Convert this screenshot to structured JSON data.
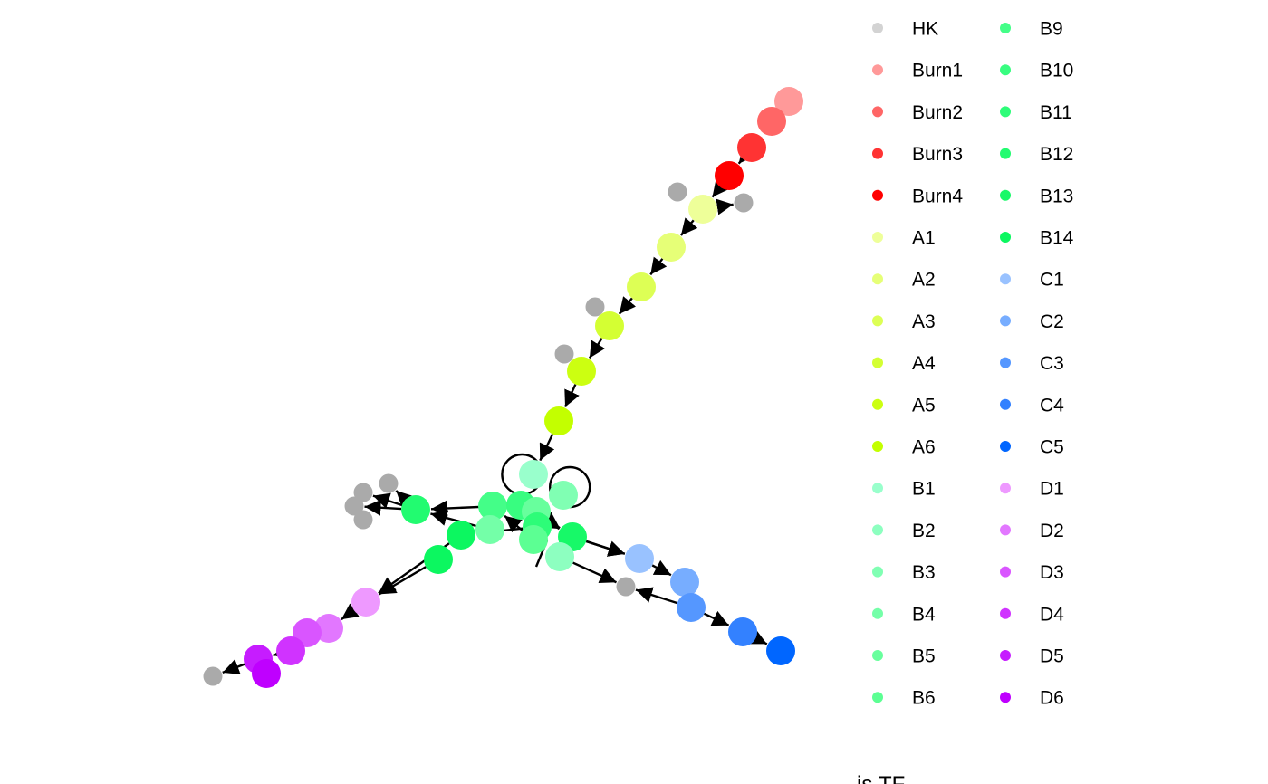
{
  "legend": {
    "items": [
      {
        "label": "HK",
        "color": "#d3d3d3"
      },
      {
        "label": "Burn1",
        "color": "#ff9999"
      },
      {
        "label": "Burn2",
        "color": "#ff6666"
      },
      {
        "label": "Burn3",
        "color": "#ff3333"
      },
      {
        "label": "Burn4",
        "color": "#ff0000"
      },
      {
        "label": "A1",
        "color": "#eeff99"
      },
      {
        "label": "A2",
        "color": "#e6ff77"
      },
      {
        "label": "A3",
        "color": "#ddff55"
      },
      {
        "label": "A4",
        "color": "#d4ff33"
      },
      {
        "label": "A5",
        "color": "#ccff11"
      },
      {
        "label": "A6",
        "color": "#c3ff00"
      },
      {
        "label": "B1",
        "color": "#99ffcc"
      },
      {
        "label": "B2",
        "color": "#8dffc0"
      },
      {
        "label": "B3",
        "color": "#80ffb3"
      },
      {
        "label": "B4",
        "color": "#74ffa8"
      },
      {
        "label": "B5",
        "color": "#68ff9d"
      },
      {
        "label": "B6",
        "color": "#5cff93"
      },
      {
        "label": "B9",
        "color": "#44fe88"
      },
      {
        "label": "B10",
        "color": "#38fd80"
      },
      {
        "label": "B11",
        "color": "#2dfc78"
      },
      {
        "label": "B12",
        "color": "#22fb70"
      },
      {
        "label": "B13",
        "color": "#17f968"
      },
      {
        "label": "B14",
        "color": "#0cf760"
      },
      {
        "label": "C1",
        "color": "#99c2ff"
      },
      {
        "label": "C2",
        "color": "#77adff"
      },
      {
        "label": "C3",
        "color": "#5597ff"
      },
      {
        "label": "C4",
        "color": "#3381ff"
      },
      {
        "label": "C5",
        "color": "#0066ff"
      },
      {
        "label": "D1",
        "color": "#ee99ff"
      },
      {
        "label": "D2",
        "color": "#e277ff"
      },
      {
        "label": "D3",
        "color": "#d955ff"
      },
      {
        "label": "D4",
        "color": "#d033ff"
      },
      {
        "label": "D5",
        "color": "#c61cff"
      },
      {
        "label": "D6",
        "color": "#bf00ff"
      }
    ],
    "title": "is.TF"
  },
  "graph": {
    "edge_color": "#000000",
    "nodes": [
      {
        "id": "burn1",
        "label": "Burn1",
        "color": "#ff9999"
      },
      {
        "id": "burn2",
        "label": "Burn2",
        "color": "#ff6666"
      },
      {
        "id": "burn3",
        "label": "Burn3",
        "color": "#ff3333"
      },
      {
        "id": "burn4",
        "label": "Burn4",
        "color": "#ff0000"
      },
      {
        "id": "hk1",
        "label": "HK",
        "color": "#aaaaaa"
      },
      {
        "id": "hk2",
        "label": "HK",
        "color": "#aaaaaa"
      },
      {
        "id": "a1",
        "label": "A1",
        "color": "#eeff99"
      },
      {
        "id": "a2",
        "label": "A2",
        "color": "#e6ff77"
      },
      {
        "id": "a3",
        "label": "A3",
        "color": "#ddff55"
      },
      {
        "id": "hk3",
        "label": "HK",
        "color": "#aaaaaa"
      },
      {
        "id": "a4",
        "label": "A4",
        "color": "#d4ff33"
      },
      {
        "id": "hk4",
        "label": "HK",
        "color": "#aaaaaa"
      },
      {
        "id": "a5",
        "label": "A5",
        "color": "#ccff11"
      },
      {
        "id": "a6",
        "label": "A6",
        "color": "#c3ff00"
      },
      {
        "id": "b1",
        "label": "B1",
        "color": "#99ffcc"
      },
      {
        "id": "b2",
        "label": "B2",
        "color": "#8dffc0"
      },
      {
        "id": "b3",
        "label": "B3",
        "color": "#80ffb3"
      },
      {
        "id": "b4",
        "label": "B4",
        "color": "#74ffa8"
      },
      {
        "id": "b5",
        "label": "B5",
        "color": "#68ff9d"
      },
      {
        "id": "b6",
        "label": "B6",
        "color": "#5cff93"
      },
      {
        "id": "b9",
        "label": "B9",
        "color": "#44fe88"
      },
      {
        "id": "b10",
        "label": "B10",
        "color": "#38fd80"
      },
      {
        "id": "b11",
        "label": "B11",
        "color": "#2dfc78"
      },
      {
        "id": "b12",
        "label": "B12",
        "color": "#22fb70"
      },
      {
        "id": "b13",
        "label": "B13",
        "color": "#17f968"
      },
      {
        "id": "b14",
        "label": "B14",
        "color": "#0cf760"
      },
      {
        "id": "hk5",
        "label": "HK",
        "color": "#aaaaaa"
      },
      {
        "id": "hk6",
        "label": "HK",
        "color": "#aaaaaa"
      },
      {
        "id": "hk7",
        "label": "HK",
        "color": "#aaaaaa"
      },
      {
        "id": "hk8",
        "label": "HK",
        "color": "#aaaaaa"
      },
      {
        "id": "c1",
        "label": "C1",
        "color": "#99c2ff"
      },
      {
        "id": "c2",
        "label": "C2",
        "color": "#77adff"
      },
      {
        "id": "c3",
        "label": "C3",
        "color": "#5597ff"
      },
      {
        "id": "hk9",
        "label": "HK",
        "color": "#aaaaaa"
      },
      {
        "id": "c4",
        "label": "C4",
        "color": "#3381ff"
      },
      {
        "id": "c5",
        "label": "C5",
        "color": "#0066ff"
      },
      {
        "id": "d1",
        "label": "D1",
        "color": "#ee99ff"
      },
      {
        "id": "d2",
        "label": "D2",
        "color": "#e277ff"
      },
      {
        "id": "d3",
        "label": "D3",
        "color": "#d955ff"
      },
      {
        "id": "d4",
        "label": "D4",
        "color": "#d033ff"
      },
      {
        "id": "d5",
        "label": "D5",
        "color": "#c61cff"
      },
      {
        "id": "d6",
        "label": "D6",
        "color": "#bf00ff"
      },
      {
        "id": "hk10",
        "label": "HK",
        "color": "#aaaaaa"
      }
    ],
    "edges": [
      {
        "from": "burn3",
        "to": "burn4"
      },
      {
        "from": "burn4",
        "to": "a1"
      },
      {
        "from": "a1",
        "to": "hk2"
      },
      {
        "from": "a1",
        "to": "a2"
      },
      {
        "from": "a2",
        "to": "a3"
      },
      {
        "from": "a3",
        "to": "a4"
      },
      {
        "from": "a4",
        "to": "a5"
      },
      {
        "from": "a5",
        "to": "a6"
      },
      {
        "from": "a6",
        "to": "b1"
      },
      {
        "from": "b1",
        "to": "b1",
        "loop": true
      },
      {
        "from": "b3",
        "to": "b3",
        "loop": true
      },
      {
        "from": "b9",
        "to": "b10"
      },
      {
        "from": "b4",
        "to": "b12"
      },
      {
        "from": "b12",
        "to": "hk6"
      },
      {
        "from": "b12",
        "to": "hk7"
      },
      {
        "from": "b10",
        "to": "b13"
      },
      {
        "from": "b14",
        "to": "d1"
      },
      {
        "from": "d1",
        "to": "d2"
      },
      {
        "from": "d3",
        "to": "d4"
      },
      {
        "from": "d5",
        "to": "hk10"
      },
      {
        "from": "b13",
        "to": "c1"
      },
      {
        "from": "b2",
        "to": "hk9"
      },
      {
        "from": "c1",
        "to": "c2"
      },
      {
        "from": "c3",
        "to": "hk9"
      },
      {
        "from": "c3",
        "to": "c4"
      },
      {
        "from": "c4",
        "to": "c5"
      }
    ]
  }
}
